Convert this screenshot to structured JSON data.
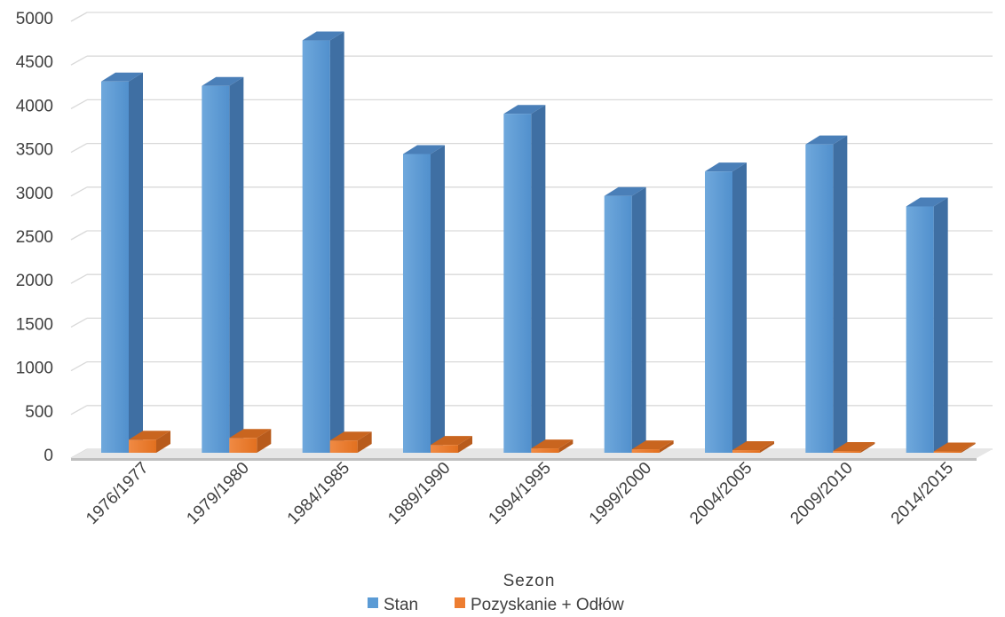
{
  "chart_data": {
    "type": "bar",
    "title": "",
    "xlabel": "Sezon",
    "ylabel": "",
    "ylim": [
      0,
      5000
    ],
    "yticks": [
      0,
      500,
      1000,
      1500,
      2000,
      2500,
      3000,
      3500,
      4000,
      4500,
      5000
    ],
    "grid": true,
    "legend_position": "bottom",
    "categories": [
      "1976/1977",
      "1979/1980",
      "1984/1985",
      "1989/1990",
      "1994/1995",
      "1999/2000",
      "2004/2005",
      "2009/2010",
      "2014/2015"
    ],
    "series": [
      {
        "name": "Stan",
        "color": "#5B9BD5",
        "values": [
          4250,
          4200,
          4720,
          3420,
          3880,
          2940,
          3220,
          3530,
          2820
        ]
      },
      {
        "name": "Pozyskanie + Odłów",
        "color": "#ED7D31",
        "values": [
          150,
          170,
          140,
          90,
          50,
          40,
          30,
          20,
          15
        ]
      }
    ]
  }
}
